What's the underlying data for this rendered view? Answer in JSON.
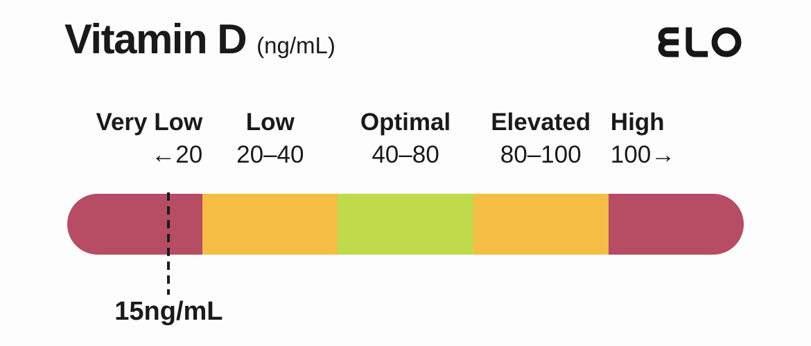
{
  "header": {
    "title": "Vitamin D",
    "unit": "(ng/mL)",
    "logo_text": "ELO"
  },
  "colors": {
    "text": "#1a1a1a",
    "background": "#fdfdfd",
    "berry": "#b64d64",
    "amber": "#f4bd44",
    "green": "#bfda4b",
    "marker": "#1c1c1c"
  },
  "chart_data": {
    "type": "bar",
    "title": "Vitamin D",
    "unit": "ng/mL",
    "categories": [
      "Very Low",
      "Low",
      "Optimal",
      "Elevated",
      "High"
    ],
    "range_labels": [
      "←20",
      "20–40",
      "40–80",
      "80–100",
      "100→"
    ],
    "segments": [
      {
        "label": "Very Low",
        "range_text": "←20",
        "max": 20,
        "color": "#b64d64"
      },
      {
        "label": "Low",
        "range_text": "20–40",
        "max": 40,
        "color": "#f4bd44"
      },
      {
        "label": "Optimal",
        "range_text": "40–80",
        "max": 80,
        "color": "#bfda4b"
      },
      {
        "label": "Elevated",
        "range_text": "80–100",
        "max": 100,
        "color": "#f4bd44"
      },
      {
        "label": "High",
        "range_text": "100→",
        "max": null,
        "color": "#b64d64"
      }
    ],
    "marker": {
      "value": 15,
      "label": "15ng/mL"
    },
    "layout_hint": {
      "equal_width_segments": true,
      "marker_in_segment": "Very Low",
      "legend": "none",
      "grid": "off"
    }
  }
}
